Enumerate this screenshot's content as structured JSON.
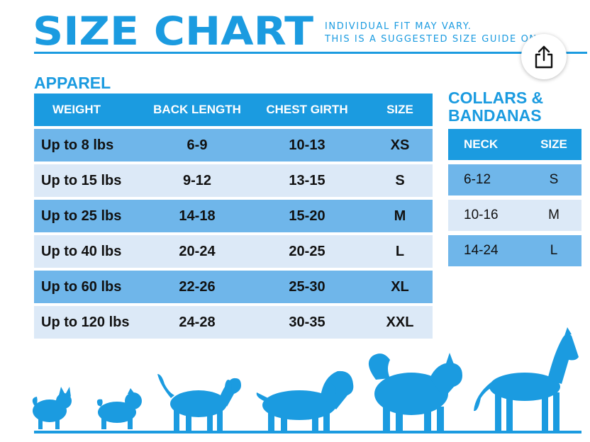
{
  "header": {
    "title": "SIZE CHART",
    "note_line1": "INDIVIDUAL FIT MAY VARY.",
    "note_line2": "THIS IS A SUGGESTED SIZE GUIDE ONLY."
  },
  "share_button": {
    "icon": "share-icon"
  },
  "apparel": {
    "label": "APPAREL",
    "columns": [
      "WEIGHT",
      "BACK LENGTH",
      "CHEST GIRTH",
      "SIZE"
    ],
    "rows": [
      [
        "Up to 8 lbs",
        "6-9",
        "10-13",
        "XS"
      ],
      [
        "Up to 15 lbs",
        "9-12",
        "13-15",
        "S"
      ],
      [
        "Up to 25 lbs",
        "14-18",
        "15-20",
        "M"
      ],
      [
        "Up to 40 lbs",
        "20-24",
        "20-25",
        "L"
      ],
      [
        "Up to 60 lbs",
        "22-26",
        "25-30",
        "XL"
      ],
      [
        "Up to 120 lbs",
        "24-28",
        "30-35",
        "XXL"
      ]
    ]
  },
  "collars": {
    "label_line1": "COLLARS &",
    "label_line2": "BANDANAS",
    "columns": [
      "NECK",
      "SIZE"
    ],
    "rows": [
      [
        "6-12",
        "S"
      ],
      [
        "10-16",
        "M"
      ],
      [
        "14-24",
        "L"
      ]
    ]
  },
  "colors": {
    "brand_blue": "#1b9be0",
    "row_dark": "#6fb6ea",
    "row_light": "#dce9f7"
  }
}
